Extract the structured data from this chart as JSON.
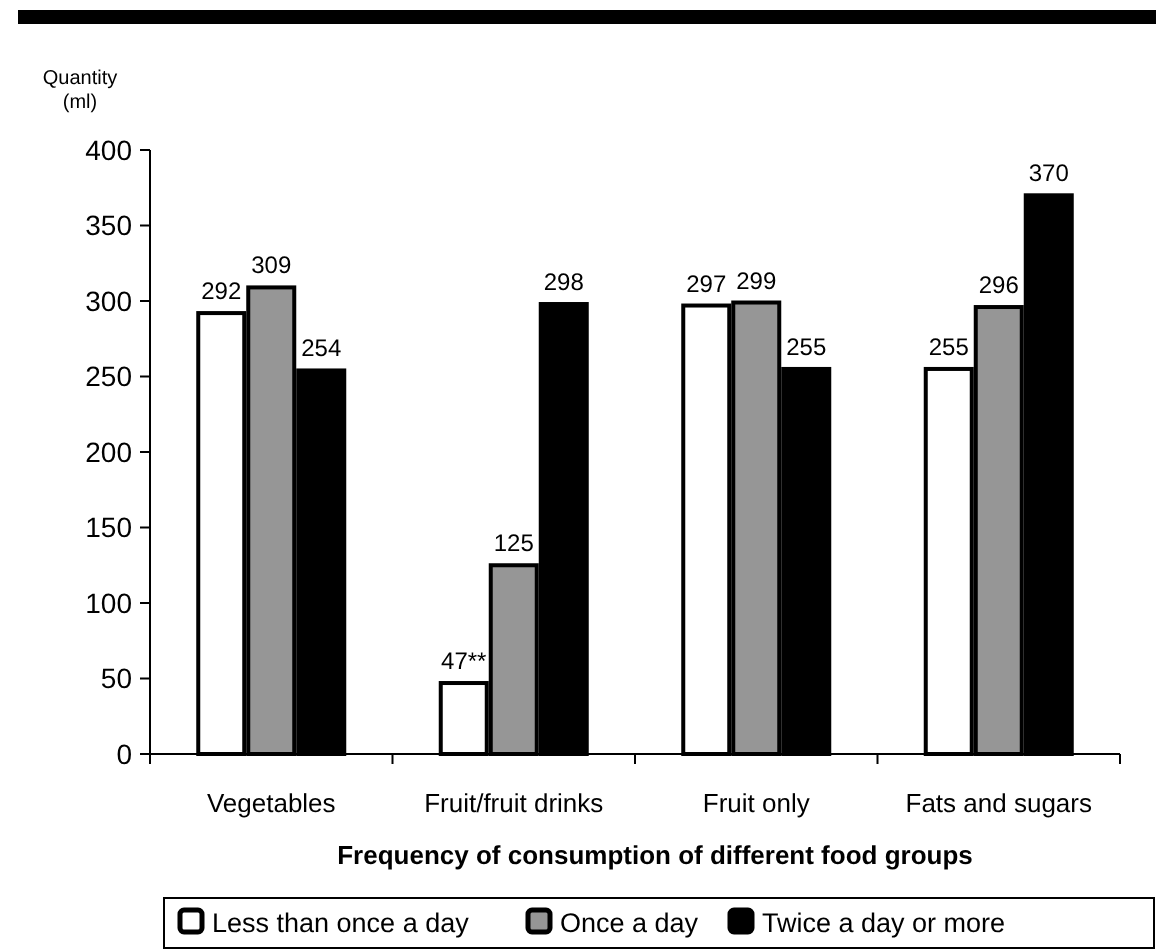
{
  "chart_data": {
    "type": "bar",
    "ylabel": "Quantity (ml)",
    "xlabel": "Frequency of consumption of different food groups",
    "categories": [
      "Vegetables",
      "Fruit/fruit drinks",
      "Fruit only",
      "Fats and sugars"
    ],
    "series": [
      {
        "name": "Less than once a day",
        "color": "#ffffff",
        "values": [
          292,
          47,
          297,
          255
        ],
        "value_labels": [
          "292",
          "47**",
          "297",
          "255"
        ]
      },
      {
        "name": "Once a day",
        "color": "#969696",
        "values": [
          309,
          125,
          299,
          296
        ],
        "value_labels": [
          "309",
          "125",
          "299",
          "296"
        ]
      },
      {
        "name": "Twice a day or more",
        "color": "#000000",
        "values": [
          254,
          298,
          255,
          370
        ],
        "value_labels": [
          "254",
          "298",
          "255",
          "370"
        ]
      }
    ],
    "ylim": [
      0,
      400
    ],
    "yticks": [
      0,
      50,
      100,
      150,
      200,
      250,
      300,
      350,
      400
    ],
    "grid": false,
    "legend": "bottom"
  }
}
